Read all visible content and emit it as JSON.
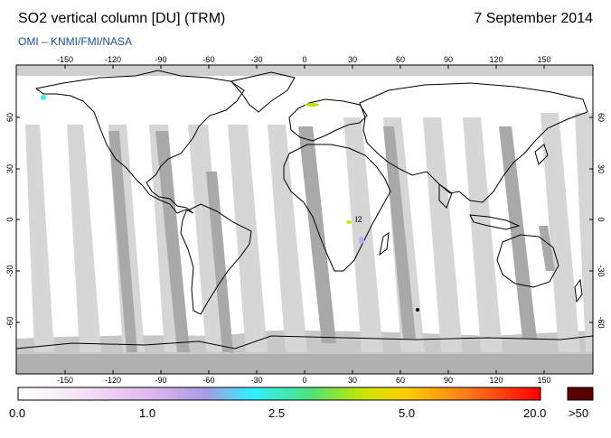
{
  "header": {
    "title": "SO2 vertical column [DU] (TRM)",
    "date": "7 September 2014",
    "source": "OMI  –  KNMI/FMI/NASA"
  },
  "map": {
    "lon_ticks": [
      "-150",
      "-120",
      "-90",
      "-60",
      "-30",
      "0",
      "30",
      "60",
      "90",
      "120",
      "150"
    ],
    "lat_ticks": [
      "60",
      "30",
      "0",
      "-30",
      "-60"
    ],
    "annotation": "I2",
    "colors": {
      "background": "#ffffff",
      "swath_light": "#d5d5d5",
      "swath_dark": "#a8a8a8",
      "polar_fill": "#c8c8c8",
      "coast": "#000000"
    }
  },
  "colorbar": {
    "labels": [
      "0.0",
      "1.0",
      "2.5",
      "5.0",
      "20.0"
    ],
    "max_label": ">50",
    "gradient": [
      "#ffffff",
      "#f3d8f3",
      "#d8a6ec",
      "#9b8ee3",
      "#2ef0ff",
      "#4fe37a",
      "#b8e400",
      "#ffcc00",
      "#ff7a1a",
      "#ff0000"
    ],
    "max_color": "#5a0000"
  }
}
